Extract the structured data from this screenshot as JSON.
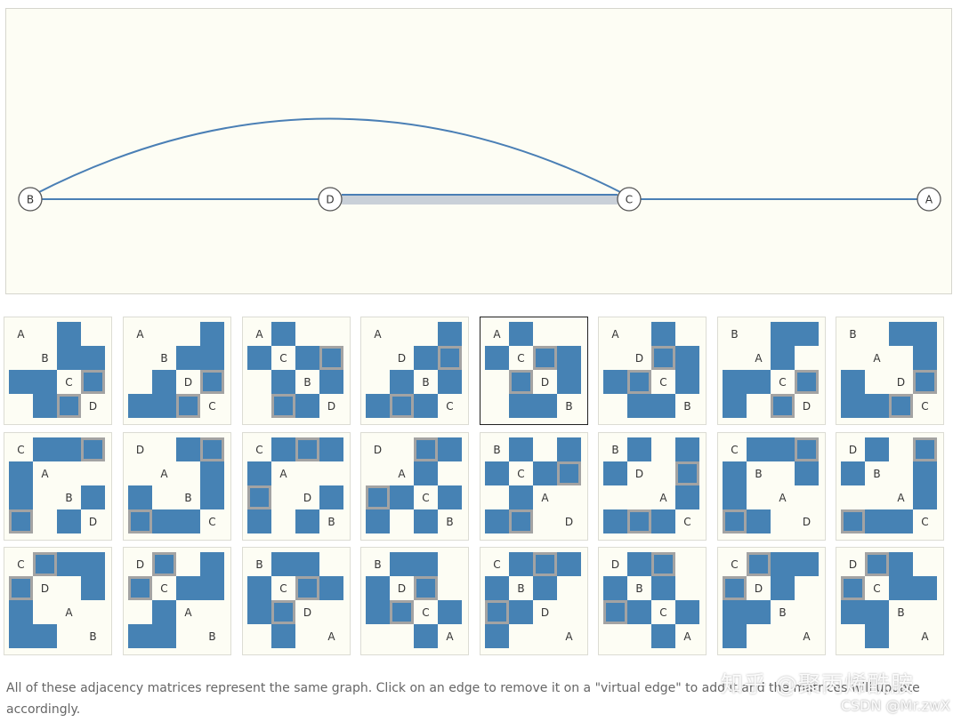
{
  "graph": {
    "nodes": [
      {
        "id": "B",
        "label": "B"
      },
      {
        "id": "D",
        "label": "D"
      },
      {
        "id": "C",
        "label": "C"
      },
      {
        "id": "A",
        "label": "A"
      }
    ],
    "edges": [
      {
        "source": "B",
        "target": "D",
        "kind": "real"
      },
      {
        "source": "D",
        "target": "C",
        "kind": "virtual"
      },
      {
        "source": "C",
        "target": "A",
        "kind": "real"
      },
      {
        "source": "B",
        "target": "C",
        "kind": "real"
      }
    ],
    "colors": {
      "edge": "#4a7fb5",
      "virtual_edge": "#c9d0d8",
      "node_fill": "#ffffff",
      "node_stroke": "#555555",
      "panel_bg": "#fdfdf4"
    }
  },
  "matrices": [
    {
      "order": [
        "A",
        "B",
        "C",
        "D"
      ],
      "selected": false
    },
    {
      "order": [
        "A",
        "B",
        "D",
        "C"
      ],
      "selected": false
    },
    {
      "order": [
        "A",
        "C",
        "B",
        "D"
      ],
      "selected": false
    },
    {
      "order": [
        "A",
        "D",
        "B",
        "C"
      ],
      "selected": false
    },
    {
      "order": [
        "A",
        "C",
        "D",
        "B"
      ],
      "selected": true
    },
    {
      "order": [
        "A",
        "D",
        "C",
        "B"
      ],
      "selected": false
    },
    {
      "order": [
        "B",
        "A",
        "C",
        "D"
      ],
      "selected": false
    },
    {
      "order": [
        "B",
        "A",
        "D",
        "C"
      ],
      "selected": false
    },
    {
      "order": [
        "C",
        "A",
        "B",
        "D"
      ],
      "selected": false
    },
    {
      "order": [
        "D",
        "A",
        "B",
        "C"
      ],
      "selected": false
    },
    {
      "order": [
        "C",
        "A",
        "D",
        "B"
      ],
      "selected": false
    },
    {
      "order": [
        "D",
        "A",
        "C",
        "B"
      ],
      "selected": false
    },
    {
      "order": [
        "B",
        "C",
        "A",
        "D"
      ],
      "selected": false
    },
    {
      "order": [
        "B",
        "D",
        "A",
        "C"
      ],
      "selected": false
    },
    {
      "order": [
        "C",
        "B",
        "A",
        "D"
      ],
      "selected": false
    },
    {
      "order": [
        "D",
        "B",
        "A",
        "C"
      ],
      "selected": false
    },
    {
      "order": [
        "C",
        "D",
        "A",
        "B"
      ],
      "selected": false
    },
    {
      "order": [
        "D",
        "C",
        "A",
        "B"
      ],
      "selected": false
    },
    {
      "order": [
        "B",
        "C",
        "D",
        "A"
      ],
      "selected": false
    },
    {
      "order": [
        "B",
        "D",
        "C",
        "A"
      ],
      "selected": false
    },
    {
      "order": [
        "C",
        "B",
        "D",
        "A"
      ],
      "selected": false
    },
    {
      "order": [
        "D",
        "B",
        "C",
        "A"
      ],
      "selected": false
    },
    {
      "order": [
        "C",
        "D",
        "B",
        "A"
      ],
      "selected": false
    },
    {
      "order": [
        "D",
        "C",
        "B",
        "A"
      ],
      "selected": false
    }
  ],
  "matrix_colors": {
    "edge": "#4682b4",
    "virtual_border": "#a3a3a3",
    "selected_border": "#222222"
  },
  "caption": "All of these adjacency matrices represent the same graph. Click on an edge to remove it on a \"virtual edge\" to add it and the matrices will update accordingly.",
  "watermark": {
    "zhihu": "知乎 @聚丙烯酰胺",
    "csdn": "CSDN @Mr.zwX"
  }
}
